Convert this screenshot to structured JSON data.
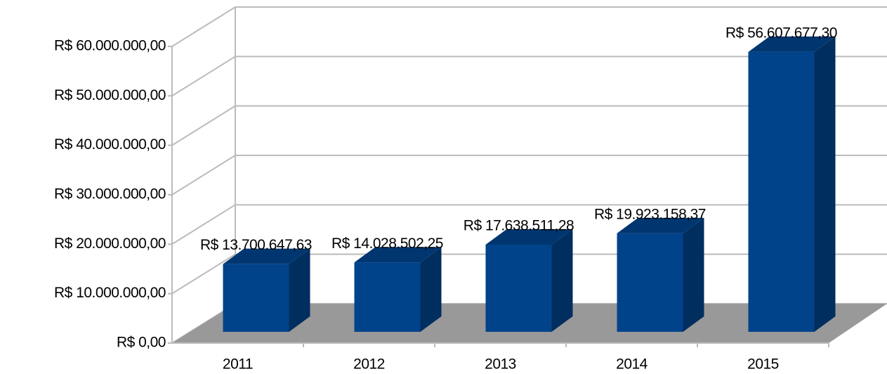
{
  "chart_data": {
    "type": "bar3d",
    "categories": [
      "2011",
      "2012",
      "2013",
      "2014",
      "2015"
    ],
    "values": [
      13700647.63,
      14028502.25,
      17638511.28,
      19923158.37,
      56607677.3
    ],
    "value_labels": [
      "R$ 13.700.647,63",
      "R$ 14.028.502,25",
      "R$ 17.638.511,28",
      "R$ 19.923.158,37",
      "R$ 56.607.677,30"
    ],
    "color": "#00438a",
    "ylim": [
      0,
      60000000
    ],
    "yticks": [
      {
        "value": 0,
        "label": "R$ 0,00"
      },
      {
        "value": 10000000,
        "label": "R$ 10.000.000,00"
      },
      {
        "value": 20000000,
        "label": "R$ 20.000.000,00"
      },
      {
        "value": 30000000,
        "label": "R$ 30.000.000,00"
      },
      {
        "value": 40000000,
        "label": "R$ 40.000.000,00"
      },
      {
        "value": 50000000,
        "label": "R$ 50.000.000,00"
      },
      {
        "value": 60000000,
        "label": "R$ 60.000.000,00"
      }
    ],
    "grid": true
  }
}
